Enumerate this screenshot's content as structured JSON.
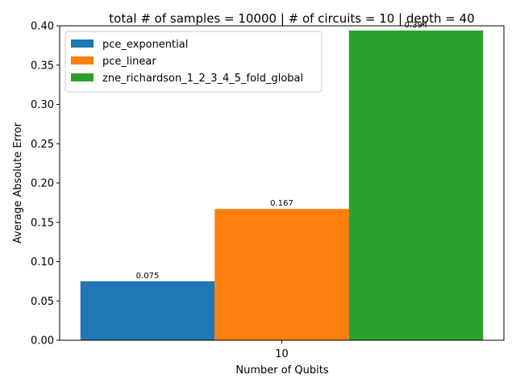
{
  "chart_data": {
    "type": "bar",
    "title": "total # of samples = 10000 | # of circuits = 10 | depth = 40",
    "xlabel": "Number of Qubits",
    "ylabel": "Average Absolute Error",
    "categories": [
      "10"
    ],
    "ylim": [
      0,
      0.4
    ],
    "yticks": [
      "0.00",
      "0.05",
      "0.10",
      "0.15",
      "0.20",
      "0.25",
      "0.30",
      "0.35",
      "0.40"
    ],
    "grid": false,
    "legend_position": "top-left",
    "series": [
      {
        "name": "pce_exponential",
        "values": [
          0.075
        ],
        "label": "0.075",
        "color": "#1f77b4"
      },
      {
        "name": "pce_linear",
        "values": [
          0.167
        ],
        "label": "0.167",
        "color": "#ff7f0e"
      },
      {
        "name": "zne_richardson_1_2_3_4_5_fold_global",
        "values": [
          0.394
        ],
        "label": "0.394",
        "color": "#2ca02c"
      }
    ]
  }
}
